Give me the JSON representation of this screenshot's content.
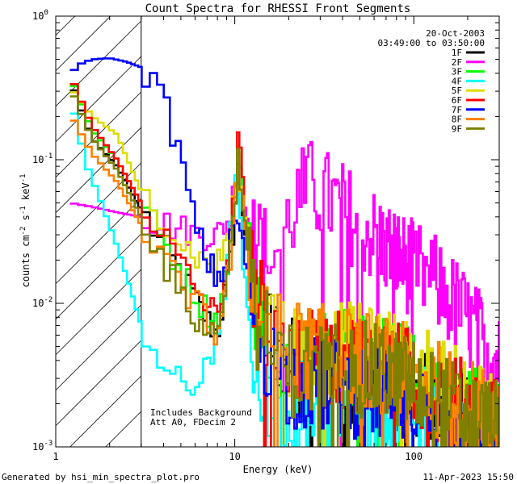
{
  "chart_data": {
    "type": "line",
    "title": "Count Spectra for RHESSI Front Segments",
    "xlabel": "Energy (keV)",
    "ylabel_text": "counts cm",
    "ylabel_sup1": "-2",
    "ylabel_mid": " s",
    "ylabel_sup2": "-1",
    "ylabel_mid2": " keV",
    "ylabel_sup3": "-1",
    "x_scale": "log",
    "y_scale": "log",
    "xlim": [
      1,
      300
    ],
    "ylim": [
      0.001,
      1
    ],
    "x_tick_labels": [
      {
        "value": 1,
        "text": "1"
      },
      {
        "value": 10,
        "text": "10"
      },
      {
        "value": 100,
        "text": "100"
      }
    ],
    "y_tick_labels": [
      {
        "value": 1,
        "base": "10",
        "exp": "0"
      },
      {
        "value": 0.1,
        "base": "10",
        "exp": "-1"
      },
      {
        "value": 0.01,
        "base": "10",
        "exp": "-2"
      },
      {
        "value": 0.001,
        "base": "10",
        "exp": "-3"
      }
    ],
    "attenuator_region_max_energy": 3,
    "date": "20-Oct-2003",
    "time_range": "03:49:00 to 03:50:00",
    "annotation_lines": [
      "Includes Background",
      "Att A0, FDecim 2"
    ],
    "footer_left": "Generated by hsi_min_spectra_plot.pro",
    "footer_right": "11-Apr-2023 15:50",
    "legend_position": "top-right",
    "series": [
      {
        "name": "1F",
        "color": "#000000",
        "base": [
          [
            1.2,
            0.36
          ],
          [
            1.6,
            0.14
          ],
          [
            2.2,
            0.09
          ],
          [
            3.0,
            0.045
          ],
          [
            4.0,
            0.025
          ],
          [
            5.0,
            0.016
          ],
          [
            6.5,
            0.009
          ],
          [
            8.0,
            0.006
          ],
          [
            9.5,
            0.02
          ],
          [
            10.5,
            0.09
          ],
          [
            11.5,
            0.03
          ],
          [
            13,
            0.009
          ],
          [
            16,
            0.006
          ],
          [
            20,
            0.004
          ],
          [
            30,
            0.003
          ],
          [
            50,
            0.0033
          ],
          [
            80,
            0.0028
          ],
          [
            130,
            0.002
          ],
          [
            200,
            0.0015
          ],
          [
            290,
            0.0012
          ]
        ]
      },
      {
        "name": "2F",
        "color": "#ff00ff",
        "base": [
          [
            1.2,
            0.05
          ],
          [
            1.6,
            0.047
          ],
          [
            2.2,
            0.043
          ],
          [
            3.0,
            0.04
          ],
          [
            4.0,
            0.036
          ],
          [
            5.0,
            0.033
          ],
          [
            6.5,
            0.03
          ],
          [
            8.0,
            0.03
          ],
          [
            9.5,
            0.04
          ],
          [
            10.5,
            0.13
          ],
          [
            11.5,
            0.045
          ],
          [
            13,
            0.025
          ],
          [
            16,
            0.022
          ],
          [
            18,
            0.025
          ],
          [
            22,
            0.05
          ],
          [
            26,
            0.065
          ],
          [
            32,
            0.055
          ],
          [
            45,
            0.04
          ],
          [
            65,
            0.027
          ],
          [
            90,
            0.019
          ],
          [
            130,
            0.014
          ],
          [
            180,
            0.009
          ],
          [
            240,
            0.0055
          ],
          [
            290,
            0.004
          ]
        ]
      },
      {
        "name": "3F",
        "color": "#00ff00",
        "base": [
          [
            1.2,
            0.38
          ],
          [
            1.6,
            0.16
          ],
          [
            2.2,
            0.1
          ],
          [
            3.0,
            0.05
          ],
          [
            4.0,
            0.027
          ],
          [
            5.0,
            0.017
          ],
          [
            6.5,
            0.01
          ],
          [
            8.0,
            0.0075
          ],
          [
            9.5,
            0.025
          ],
          [
            10.5,
            0.12
          ],
          [
            11.5,
            0.035
          ],
          [
            13,
            0.01
          ],
          [
            16,
            0.006
          ],
          [
            20,
            0.0045
          ],
          [
            30,
            0.0045
          ],
          [
            50,
            0.0042
          ],
          [
            80,
            0.0035
          ],
          [
            130,
            0.0026
          ],
          [
            200,
            0.0019
          ],
          [
            290,
            0.0015
          ]
        ]
      },
      {
        "name": "4F",
        "color": "#00ffff",
        "base": [
          [
            1.2,
            0.27
          ],
          [
            1.5,
            0.09
          ],
          [
            1.8,
            0.05
          ],
          [
            2.2,
            0.025
          ],
          [
            2.6,
            0.013
          ],
          [
            3.0,
            0.007
          ],
          [
            3.5,
            0.005
          ],
          [
            4.5,
            0.003
          ],
          [
            6.0,
            0.0025
          ],
          [
            7.5,
            0.004
          ],
          [
            9.0,
            0.015
          ],
          [
            10.2,
            0.085
          ],
          [
            11,
            0.022
          ],
          [
            12,
            0.006
          ],
          [
            14,
            0.003
          ],
          [
            18,
            0.002
          ],
          [
            30,
            0.002
          ],
          [
            60,
            0.002
          ],
          [
            120,
            0.0016
          ],
          [
            200,
            0.0013
          ],
          [
            290,
            0.0011
          ]
        ]
      },
      {
        "name": "5F",
        "color": "#dddd00",
        "base": [
          [
            1.2,
            0.32
          ],
          [
            1.6,
            0.2
          ],
          [
            2.2,
            0.15
          ],
          [
            3.0,
            0.06
          ],
          [
            4.0,
            0.04
          ],
          [
            5.0,
            0.027
          ],
          [
            6.5,
            0.02
          ],
          [
            8.0,
            0.018
          ],
          [
            9.5,
            0.035
          ],
          [
            10.5,
            0.1
          ],
          [
            11.5,
            0.04
          ],
          [
            13,
            0.013
          ],
          [
            16,
            0.007
          ],
          [
            20,
            0.005
          ],
          [
            30,
            0.005
          ],
          [
            50,
            0.0045
          ],
          [
            80,
            0.004
          ],
          [
            130,
            0.003
          ],
          [
            200,
            0.002
          ],
          [
            290,
            0.0015
          ]
        ]
      },
      {
        "name": "6F",
        "color": "#ff0000",
        "base": [
          [
            1.2,
            0.39
          ],
          [
            1.6,
            0.17
          ],
          [
            2.2,
            0.1
          ],
          [
            3.0,
            0.05
          ],
          [
            4.0,
            0.03
          ],
          [
            5.0,
            0.019
          ],
          [
            6.5,
            0.011
          ],
          [
            8.0,
            0.008
          ],
          [
            9.5,
            0.028
          ],
          [
            10.5,
            0.14
          ],
          [
            11.5,
            0.04
          ],
          [
            13,
            0.011
          ],
          [
            16,
            0.007
          ],
          [
            20,
            0.0045
          ],
          [
            30,
            0.004
          ],
          [
            50,
            0.004
          ],
          [
            80,
            0.0034
          ],
          [
            130,
            0.0025
          ],
          [
            200,
            0.0018
          ],
          [
            290,
            0.0014
          ]
        ]
      },
      {
        "name": "7F",
        "color": "#0000ff",
        "base": [
          [
            1.2,
            0.4
          ],
          [
            1.4,
            0.47
          ],
          [
            1.6,
            0.5
          ],
          [
            2.0,
            0.51
          ],
          [
            2.5,
            0.48
          ],
          [
            3.0,
            0.44
          ],
          [
            3.5,
            0.36
          ],
          [
            4.0,
            0.26
          ],
          [
            4.5,
            0.16
          ],
          [
            5.0,
            0.1
          ],
          [
            5.5,
            0.06
          ],
          [
            6.0,
            0.035
          ],
          [
            7.0,
            0.02
          ],
          [
            8.0,
            0.015
          ],
          [
            9.0,
            0.018
          ],
          [
            10.0,
            0.04
          ],
          [
            10.5,
            0.035
          ],
          [
            11.5,
            0.02
          ],
          [
            13,
            0.007
          ],
          [
            16,
            0.004
          ],
          [
            20,
            0.003
          ],
          [
            30,
            0.0027
          ],
          [
            50,
            0.0025
          ],
          [
            80,
            0.0022
          ],
          [
            130,
            0.0017
          ],
          [
            200,
            0.0013
          ],
          [
            290,
            0.001
          ]
        ]
      },
      {
        "name": "8F",
        "color": "#ff8000",
        "base": [
          [
            1.2,
            0.21
          ],
          [
            1.6,
            0.11
          ],
          [
            2.2,
            0.07
          ],
          [
            3.0,
            0.035
          ],
          [
            4.0,
            0.02
          ],
          [
            5.0,
            0.013
          ],
          [
            6.5,
            0.009
          ],
          [
            8.0,
            0.006
          ],
          [
            9.5,
            0.02
          ],
          [
            10.5,
            0.1
          ],
          [
            11.5,
            0.035
          ],
          [
            13,
            0.01
          ],
          [
            16,
            0.006
          ],
          [
            20,
            0.005
          ],
          [
            30,
            0.0045
          ],
          [
            50,
            0.0042
          ],
          [
            80,
            0.0035
          ],
          [
            130,
            0.0026
          ],
          [
            200,
            0.0019
          ],
          [
            290,
            0.0015
          ]
        ]
      },
      {
        "name": "9F",
        "color": "#808000",
        "base": [
          [
            1.2,
            0.32
          ],
          [
            1.6,
            0.14
          ],
          [
            2.2,
            0.085
          ],
          [
            3.0,
            0.04
          ],
          [
            4.0,
            0.02
          ],
          [
            5.0,
            0.011
          ],
          [
            6.5,
            0.007
          ],
          [
            8.0,
            0.006
          ],
          [
            9.5,
            0.025
          ],
          [
            10.5,
            0.11
          ],
          [
            11.5,
            0.03
          ],
          [
            13,
            0.008
          ],
          [
            16,
            0.005
          ],
          [
            20,
            0.0035
          ],
          [
            30,
            0.0035
          ],
          [
            50,
            0.0035
          ],
          [
            80,
            0.003
          ],
          [
            130,
            0.0022
          ],
          [
            200,
            0.0016
          ],
          [
            290,
            0.0013
          ]
        ]
      }
    ]
  }
}
